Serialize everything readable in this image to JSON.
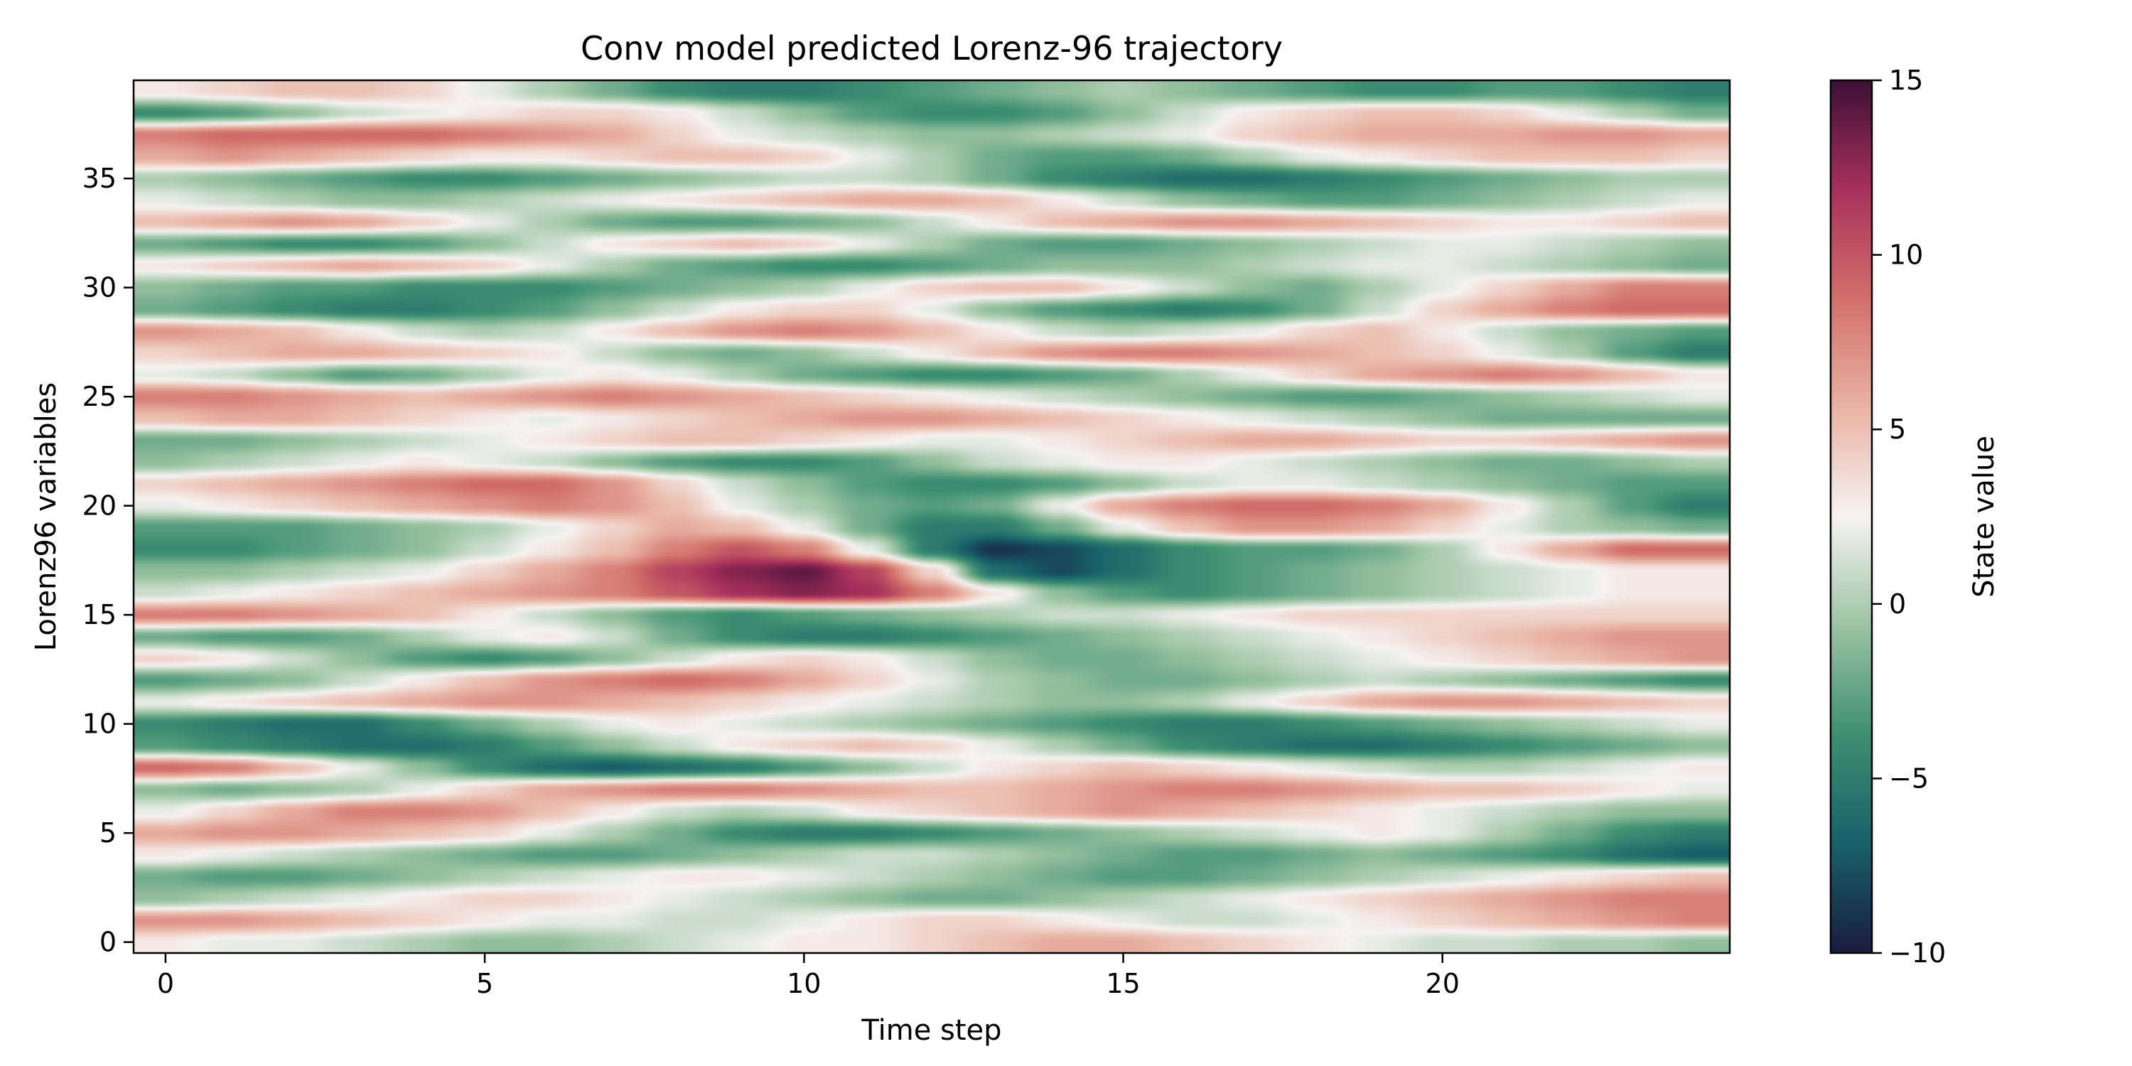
{
  "chart_data": {
    "type": "heatmap",
    "title": "Conv model predicted Lorenz-96 trajectory",
    "xlabel": "Time step",
    "ylabel": "Lorenz96 variables",
    "x_range": [
      -0.5,
      24.5
    ],
    "y_range": [
      -0.5,
      39.5
    ],
    "x_ticks": [
      0,
      5,
      10,
      15,
      20
    ],
    "y_ticks": [
      0,
      5,
      10,
      15,
      20,
      25,
      30,
      35
    ],
    "n_time_steps": 25,
    "n_variables": 40,
    "colorbar": {
      "label": "State value",
      "min": -10,
      "max": 15,
      "ticks": [
        15,
        10,
        5,
        0,
        -5,
        -10
      ],
      "tick_labels": [
        "15",
        "10",
        "5",
        "0",
        "−5",
        "−10"
      ]
    },
    "colormap": [
      "#1a1c3f",
      "#17616a",
      "#3d8f72",
      "#9cc4a3",
      "#f6f3f2",
      "#e9b3a3",
      "#d2706a",
      "#a8305c",
      "#3d1036"
    ],
    "grid": false,
    "legend": "none",
    "values_description": "Lorenz-96 state values over time; bands drift upward-to-downward diagonally. Strongest minimum near time step 13, variable 17 (~-9); strongest maximum near time step 10, variable 17 (~14).",
    "values": [
      [
        3,
        2,
        2,
        1,
        0,
        -1,
        -1,
        0,
        1,
        2,
        3,
        3,
        4,
        5,
        6,
        6,
        5,
        4,
        3,
        2,
        1,
        1,
        0,
        0,
        -1
      ],
      [
        7,
        7,
        6,
        5,
        4,
        3,
        2,
        2,
        1,
        1,
        2,
        3,
        4,
        4,
        3,
        2,
        1,
        1,
        2,
        3,
        4,
        5,
        6,
        7,
        8
      ],
      [
        -1,
        0,
        1,
        2,
        3,
        4,
        4,
        3,
        2,
        1,
        0,
        -1,
        -2,
        -2,
        -1,
        0,
        1,
        2,
        3,
        4,
        5,
        6,
        7,
        8,
        8
      ],
      [
        -2,
        -3,
        -3,
        -2,
        -1,
        0,
        1,
        2,
        3,
        3,
        2,
        1,
        0,
        -1,
        -2,
        -3,
        -3,
        -2,
        -1,
        0,
        1,
        2,
        3,
        4,
        5
      ],
      [
        3,
        2,
        1,
        0,
        -1,
        -2,
        -3,
        -3,
        -2,
        -1,
        0,
        1,
        1,
        0,
        -1,
        -2,
        -3,
        -3,
        -2,
        -1,
        -2,
        -3,
        -4,
        -6,
        -7
      ],
      [
        6,
        7,
        7,
        6,
        5,
        4,
        2,
        0,
        -2,
        -4,
        -5,
        -5,
        -4,
        -3,
        -2,
        -1,
        0,
        1,
        2,
        3,
        2,
        0,
        -2,
        -4,
        -5
      ],
      [
        2,
        4,
        6,
        8,
        8,
        7,
        5,
        3,
        1,
        0,
        1,
        3,
        4,
        5,
        6,
        7,
        6,
        5,
        4,
        3,
        2,
        1,
        0,
        -1,
        -1
      ],
      [
        -1,
        -2,
        -1,
        0,
        2,
        4,
        6,
        7,
        8,
        8,
        7,
        6,
        5,
        5,
        6,
        7,
        8,
        8,
        7,
        6,
        5,
        5,
        4,
        3,
        2
      ],
      [
        9,
        8,
        5,
        2,
        -1,
        -4,
        -6,
        -7,
        -6,
        -5,
        -3,
        -1,
        1,
        3,
        4,
        5,
        4,
        3,
        2,
        1,
        0,
        0,
        1,
        2,
        3
      ],
      [
        -3,
        -4,
        -5,
        -6,
        -6,
        -5,
        -3,
        -1,
        1,
        3,
        4,
        5,
        4,
        2,
        0,
        -2,
        -4,
        -5,
        -6,
        -6,
        -5,
        -4,
        -3,
        -2,
        -1
      ],
      [
        -4,
        -5,
        -6,
        -6,
        -4,
        -2,
        0,
        2,
        3,
        2,
        1,
        0,
        -1,
        -2,
        -3,
        -4,
        -5,
        -5,
        -4,
        -3,
        -2,
        -1,
        0,
        1,
        2
      ],
      [
        2,
        3,
        4,
        5,
        6,
        7,
        7,
        6,
        5,
        4,
        3,
        2,
        1,
        0,
        -1,
        -1,
        0,
        2,
        4,
        6,
        7,
        7,
        6,
        5,
        4
      ],
      [
        -3,
        -2,
        -1,
        1,
        3,
        5,
        7,
        8,
        9,
        8,
        6,
        4,
        2,
        0,
        -1,
        -2,
        -2,
        -1,
        0,
        1,
        0,
        -1,
        -2,
        -3,
        -4
      ],
      [
        4,
        3,
        1,
        -1,
        -3,
        -4,
        -3,
        -1,
        1,
        3,
        4,
        3,
        1,
        -1,
        -2,
        -2,
        -1,
        0,
        1,
        2,
        3,
        4,
        5,
        6,
        7
      ],
      [
        -2,
        -3,
        -3,
        -2,
        0,
        2,
        3,
        1,
        -2,
        -4,
        -5,
        -5,
        -4,
        -3,
        -2,
        -1,
        0,
        1,
        2,
        3,
        4,
        5,
        6,
        7,
        7
      ],
      [
        8,
        8,
        7,
        6,
        5,
        3,
        1,
        -1,
        -3,
        -4,
        -3,
        -2,
        -1,
        0,
        1,
        1,
        2,
        3,
        4,
        4,
        4,
        4,
        4,
        4,
        4
      ],
      [
        1,
        2,
        3,
        4,
        5,
        6,
        7,
        8,
        10,
        12,
        13,
        12,
        8,
        3,
        -1,
        -3,
        -4,
        -3,
        -2,
        -1,
        0,
        1,
        2,
        3,
        3
      ],
      [
        -1,
        -1,
        0,
        1,
        2,
        4,
        6,
        8,
        11,
        13,
        14,
        11,
        4,
        -6,
        -8,
        -6,
        -4,
        -3,
        -2,
        -1,
        0,
        1,
        2,
        3,
        3
      ],
      [
        -4,
        -4,
        -3,
        -2,
        -1,
        1,
        3,
        5,
        8,
        10,
        8,
        2,
        -5,
        -9,
        -8,
        -6,
        -4,
        -3,
        -3,
        -2,
        0,
        3,
        6,
        9,
        9
      ],
      [
        -3,
        -3,
        -3,
        -2,
        -1,
        0,
        2,
        4,
        6,
        5,
        2,
        -2,
        -5,
        -5,
        -2,
        2,
        5,
        7,
        7,
        6,
        4,
        2,
        0,
        -1,
        -2
      ],
      [
        2,
        3,
        4,
        5,
        6,
        7,
        8,
        7,
        5,
        2,
        0,
        -2,
        -3,
        -2,
        2,
        6,
        8,
        9,
        9,
        8,
        6,
        3,
        0,
        -3,
        -5
      ],
      [
        4,
        5,
        6,
        7,
        8,
        9,
        9,
        7,
        4,
        1,
        -1,
        -3,
        -4,
        -4,
        -3,
        -1,
        1,
        2,
        2,
        1,
        0,
        -1,
        -2,
        -3,
        -3
      ],
      [
        -1,
        0,
        1,
        2,
        3,
        2,
        1,
        -1,
        -3,
        -4,
        -4,
        -3,
        -1,
        1,
        2,
        3,
        3,
        2,
        1,
        0,
        -1,
        -2,
        -2,
        -1,
        0
      ],
      [
        -2,
        -2,
        -1,
        0,
        1,
        2,
        3,
        4,
        5,
        5,
        4,
        3,
        2,
        2,
        3,
        4,
        5,
        6,
        6,
        5,
        4,
        4,
        5,
        6,
        7
      ],
      [
        5,
        6,
        6,
        5,
        4,
        3,
        2,
        3,
        4,
        5,
        6,
        7,
        7,
        6,
        5,
        4,
        3,
        2,
        1,
        0,
        -1,
        -2,
        -2,
        -2,
        -2
      ],
      [
        8,
        8,
        7,
        6,
        5,
        6,
        7,
        8,
        7,
        6,
        5,
        4,
        3,
        2,
        1,
        0,
        -1,
        -2,
        -3,
        -3,
        -2,
        -1,
        0,
        1,
        2
      ],
      [
        2,
        1,
        -1,
        -3,
        -2,
        0,
        2,
        3,
        2,
        0,
        -2,
        -3,
        -4,
        -4,
        -3,
        -2,
        0,
        2,
        4,
        6,
        7,
        8,
        7,
        5,
        3
      ],
      [
        4,
        5,
        6,
        6,
        5,
        4,
        3,
        1,
        -1,
        -2,
        -1,
        1,
        3,
        5,
        7,
        8,
        8,
        7,
        6,
        5,
        4,
        2,
        0,
        -3,
        -5
      ],
      [
        7,
        6,
        5,
        3,
        1,
        0,
        1,
        3,
        5,
        7,
        8,
        7,
        5,
        3,
        1,
        0,
        1,
        2,
        4,
        5,
        3,
        1,
        -1,
        -2,
        -3
      ],
      [
        -2,
        -3,
        -4,
        -5,
        -5,
        -4,
        -3,
        -1,
        1,
        3,
        4,
        4,
        2,
        -1,
        -3,
        -4,
        -5,
        -4,
        -2,
        1,
        4,
        6,
        8,
        9,
        9
      ],
      [
        -1,
        -2,
        -3,
        -3,
        -4,
        -4,
        -4,
        -3,
        -2,
        -1,
        0,
        2,
        4,
        5,
        5,
        3,
        1,
        -1,
        -2,
        0,
        2,
        4,
        6,
        8,
        8
      ],
      [
        3,
        4,
        5,
        6,
        5,
        4,
        2,
        0,
        -2,
        -3,
        -4,
        -4,
        -3,
        -2,
        -1,
        -1,
        -1,
        0,
        1,
        2,
        2,
        1,
        0,
        -1,
        -2
      ],
      [
        -2,
        -3,
        -4,
        -4,
        -3,
        -1,
        1,
        3,
        4,
        5,
        4,
        2,
        0,
        -2,
        -3,
        -3,
        -2,
        -1,
        0,
        1,
        2,
        2,
        1,
        0,
        -1
      ],
      [
        5,
        6,
        7,
        6,
        4,
        2,
        0,
        -2,
        -3,
        -3,
        -2,
        -1,
        1,
        3,
        5,
        6,
        7,
        7,
        6,
        5,
        4,
        3,
        3,
        4,
        5
      ],
      [
        2,
        1,
        0,
        -1,
        -1,
        0,
        1,
        2,
        3,
        4,
        5,
        6,
        6,
        5,
        3,
        1,
        -1,
        -2,
        -3,
        -3,
        -2,
        -1,
        0,
        1,
        2
      ],
      [
        0,
        -1,
        -2,
        -3,
        -4,
        -4,
        -3,
        -2,
        -1,
        0,
        1,
        1,
        0,
        -2,
        -4,
        -5,
        -6,
        -6,
        -5,
        -4,
        -3,
        -2,
        -1,
        0,
        0
      ],
      [
        6,
        7,
        6,
        5,
        4,
        3,
        3,
        4,
        5,
        5,
        4,
        2,
        0,
        -2,
        -3,
        -3,
        -2,
        0,
        2,
        3,
        4,
        5,
        5,
        5,
        4
      ],
      [
        8,
        9,
        9,
        9,
        9,
        8,
        7,
        6,
        4,
        2,
        1,
        0,
        -1,
        -1,
        0,
        1,
        2,
        4,
        5,
        6,
        6,
        6,
        7,
        7,
        6
      ],
      [
        -4,
        -3,
        -1,
        1,
        2,
        3,
        4,
        4,
        3,
        1,
        -1,
        -3,
        -4,
        -4,
        -3,
        -1,
        1,
        3,
        4,
        5,
        5,
        4,
        2,
        0,
        -2
      ],
      [
        3,
        4,
        5,
        5,
        4,
        2,
        0,
        -2,
        -4,
        -5,
        -5,
        -4,
        -3,
        -2,
        -1,
        0,
        -1,
        -2,
        -3,
        -4,
        -4,
        -3,
        -3,
        -4,
        -5
      ]
    ]
  }
}
